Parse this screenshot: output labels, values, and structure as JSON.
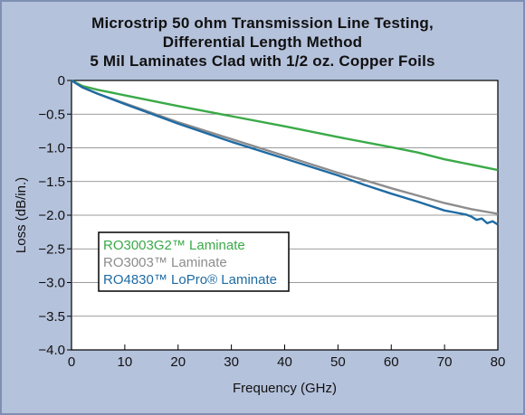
{
  "chart_data": {
    "type": "line",
    "title_lines": [
      "Microstrip 50 ohm Transmission Line Testing,",
      "Differential Length Method",
      "5 Mil Laminates Clad with 1/2 oz. Copper Foils"
    ],
    "xlabel": "Frequency (GHz)",
    "ylabel": "Loss (dB/in.)",
    "xlim": [
      0,
      80
    ],
    "ylim": [
      -4.0,
      0
    ],
    "x_ticks": [
      "0",
      "10",
      "20",
      "30",
      "40",
      "50",
      "60",
      "70",
      "80"
    ],
    "x_tick_values": [
      0,
      10,
      20,
      30,
      40,
      50,
      60,
      70,
      80
    ],
    "y_ticks": [
      "0",
      "−0.5",
      "−1.0",
      "−1.5",
      "−2.0",
      "−2.5",
      "−3.0",
      "−3.5",
      "−4.0"
    ],
    "y_tick_values": [
      0,
      -0.5,
      -1.0,
      -1.5,
      -2.0,
      -2.5,
      -3.0,
      -3.5,
      -4.0
    ],
    "grid": "horizontal",
    "legend_position": "lower-left",
    "series": [
      {
        "name": "RO3003G2™ Laminate",
        "color": "#3aaa48",
        "x": [
          0,
          2,
          5,
          10,
          20,
          30,
          40,
          50,
          60,
          65,
          70,
          75,
          80
        ],
        "y": [
          0,
          -0.08,
          -0.14,
          -0.22,
          -0.38,
          -0.53,
          -0.68,
          -0.84,
          -0.99,
          -1.07,
          -1.17,
          -1.25,
          -1.33
        ]
      },
      {
        "name": "RO3003™ Laminate",
        "color": "#8e8c8c",
        "x": [
          0,
          2,
          5,
          10,
          20,
          30,
          40,
          50,
          55,
          60,
          65,
          70,
          75,
          80
        ],
        "y": [
          0,
          -0.1,
          -0.2,
          -0.34,
          -0.62,
          -0.87,
          -1.12,
          -1.37,
          -1.48,
          -1.6,
          -1.71,
          -1.82,
          -1.91,
          -1.98
        ]
      },
      {
        "name": "RO4830™ LoPro® Laminate",
        "color": "#1f6ba3",
        "x": [
          0,
          2,
          5,
          10,
          20,
          30,
          40,
          50,
          55,
          60,
          65,
          70,
          72,
          74,
          75,
          76,
          77,
          78,
          79,
          80
        ],
        "y": [
          0,
          -0.1,
          -0.2,
          -0.35,
          -0.64,
          -0.91,
          -1.16,
          -1.41,
          -1.55,
          -1.68,
          -1.8,
          -1.93,
          -1.96,
          -1.99,
          -2.02,
          -2.07,
          -2.05,
          -2.12,
          -2.09,
          -2.14
        ]
      }
    ]
  }
}
